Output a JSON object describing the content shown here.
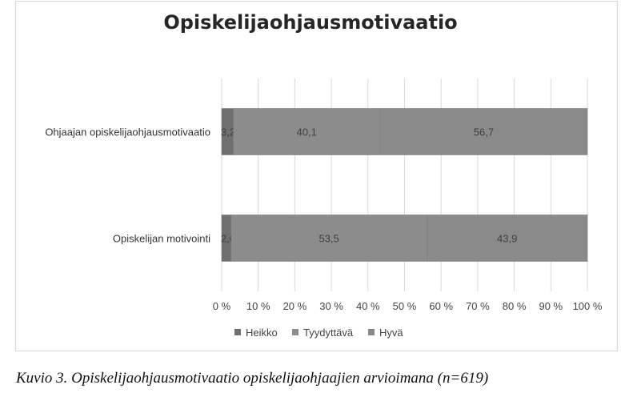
{
  "chart_data": {
    "type": "bar",
    "orientation": "horizontal",
    "stacked": "percent",
    "title": "Opiskelijaohjausmotivaatio",
    "categories": [
      "Ohjaajan opiskelijaohjausmotivaatio",
      "Opiskelijan motivointi"
    ],
    "series": [
      {
        "name": "Heikko",
        "values": [
          3.2,
          2.6
        ],
        "labels": [
          "3,2",
          "2,6"
        ],
        "color": "#6f6f6f"
      },
      {
        "name": "Tyydyttävä",
        "values": [
          40.1,
          53.5
        ],
        "labels": [
          "40,1",
          "53,5"
        ],
        "color": "#8c8c8c"
      },
      {
        "name": "Hyvä",
        "values": [
          56.7,
          43.9
        ],
        "labels": [
          "56,7",
          "43,9"
        ],
        "color": "#8a8a8a"
      }
    ],
    "xlim": [
      0,
      100
    ],
    "xticks": [
      "0 %",
      "10 %",
      "20 %",
      "30 %",
      "40 %",
      "50 %",
      "60 %",
      "70 %",
      "80 %",
      "90 %",
      "100 %"
    ],
    "grid": "vertical",
    "legend_position": "bottom"
  },
  "caption": "Kuvio 3. Opiskelijaohjausmotivaatio opiskelijaohjaajien arvioimana (n=619)"
}
